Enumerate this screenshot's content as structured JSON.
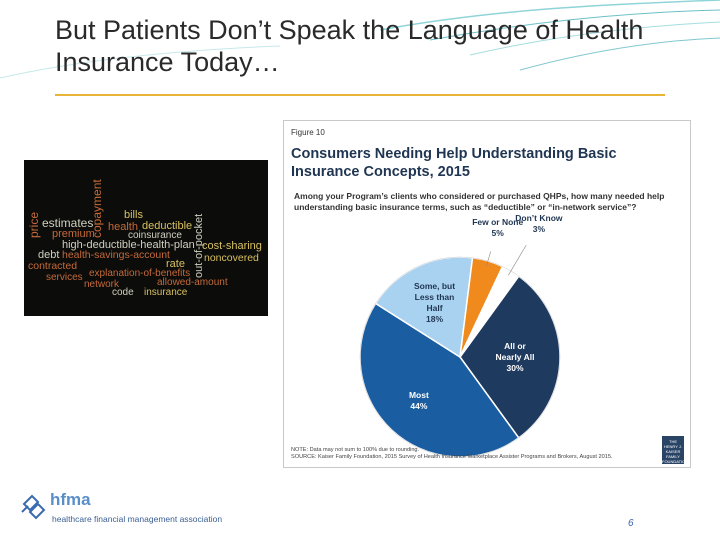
{
  "slide": {
    "title": "But Patients Don’t Speak the Language of Health Insurance Today…",
    "page_number": "6"
  },
  "word_cloud": [
    {
      "text": "price",
      "color": "#c46a3a"
    },
    {
      "text": "estimates",
      "color": "#d0d0c0"
    },
    {
      "text": "premium",
      "color": "#c46a3a"
    },
    {
      "text": "copayment",
      "color": "#c46a3a"
    },
    {
      "text": "bills",
      "color": "#d8c060"
    },
    {
      "text": "health",
      "color": "#c46a3a"
    },
    {
      "text": "deductible",
      "color": "#d8c060"
    },
    {
      "text": "coinsurance",
      "color": "#d0d0c0"
    },
    {
      "text": "out-of-pocket",
      "color": "#d0d0c0"
    },
    {
      "text": "high-deductible-health-plan",
      "color": "#d0d0c0"
    },
    {
      "text": "debt",
      "color": "#d0d0c0"
    },
    {
      "text": "health-savings-account",
      "color": "#c46a3a"
    },
    {
      "text": "cost-sharing",
      "color": "#d8c060"
    },
    {
      "text": "contracted",
      "color": "#c46a3a"
    },
    {
      "text": "noncovered",
      "color": "#d8c060"
    },
    {
      "text": "rate",
      "color": "#d8c060"
    },
    {
      "text": "services",
      "color": "#c46a3a"
    },
    {
      "text": "explanation-of-benefits",
      "color": "#c46a3a"
    },
    {
      "text": "network",
      "color": "#c46a3a"
    },
    {
      "text": "allowed-amount",
      "color": "#c46a3a"
    },
    {
      "text": "code",
      "color": "#d0d0c0"
    },
    {
      "text": "insurance",
      "color": "#d8c060"
    }
  ],
  "figure": {
    "label": "Figure 10",
    "note": "NOTE: Data may not sum to 100% due to rounding.",
    "source": "SOURCE: Kaiser Family Foundation, 2015 Survey of Health Insurance Marketplace Assister Programs and Brokers, August 2015.",
    "logo_text": "THE HENRY J. KAISER FAMILY FOUNDATION"
  },
  "chart_data": {
    "type": "pie",
    "title": "Consumers Needing Help Understanding Basic Insurance Concepts, 2015",
    "subtitle": "Among your Program’s clients who considered or purchased QHPs, how many needed help understanding basic insurance terms, such as “deductible” or “in-network service”?",
    "slices": [
      {
        "label": "All or Nearly All",
        "value": 30,
        "value_label": "30%",
        "color": "#1f3a5f"
      },
      {
        "label": "Most",
        "value": 44,
        "value_label": "44%",
        "color": "#1a5da0"
      },
      {
        "label": "Some, but Less than Half",
        "value": 18,
        "value_label": "18%",
        "color": "#a9d2f0"
      },
      {
        "label": "Few or None",
        "value": 5,
        "value_label": "5%",
        "color": "#f08a1c"
      },
      {
        "label": "Don’t Know",
        "value": 3,
        "value_label": "3%",
        "color": "#ffffff"
      }
    ]
  },
  "hfma": {
    "name": "hfma",
    "subtitle": "healthcare financial management association"
  }
}
